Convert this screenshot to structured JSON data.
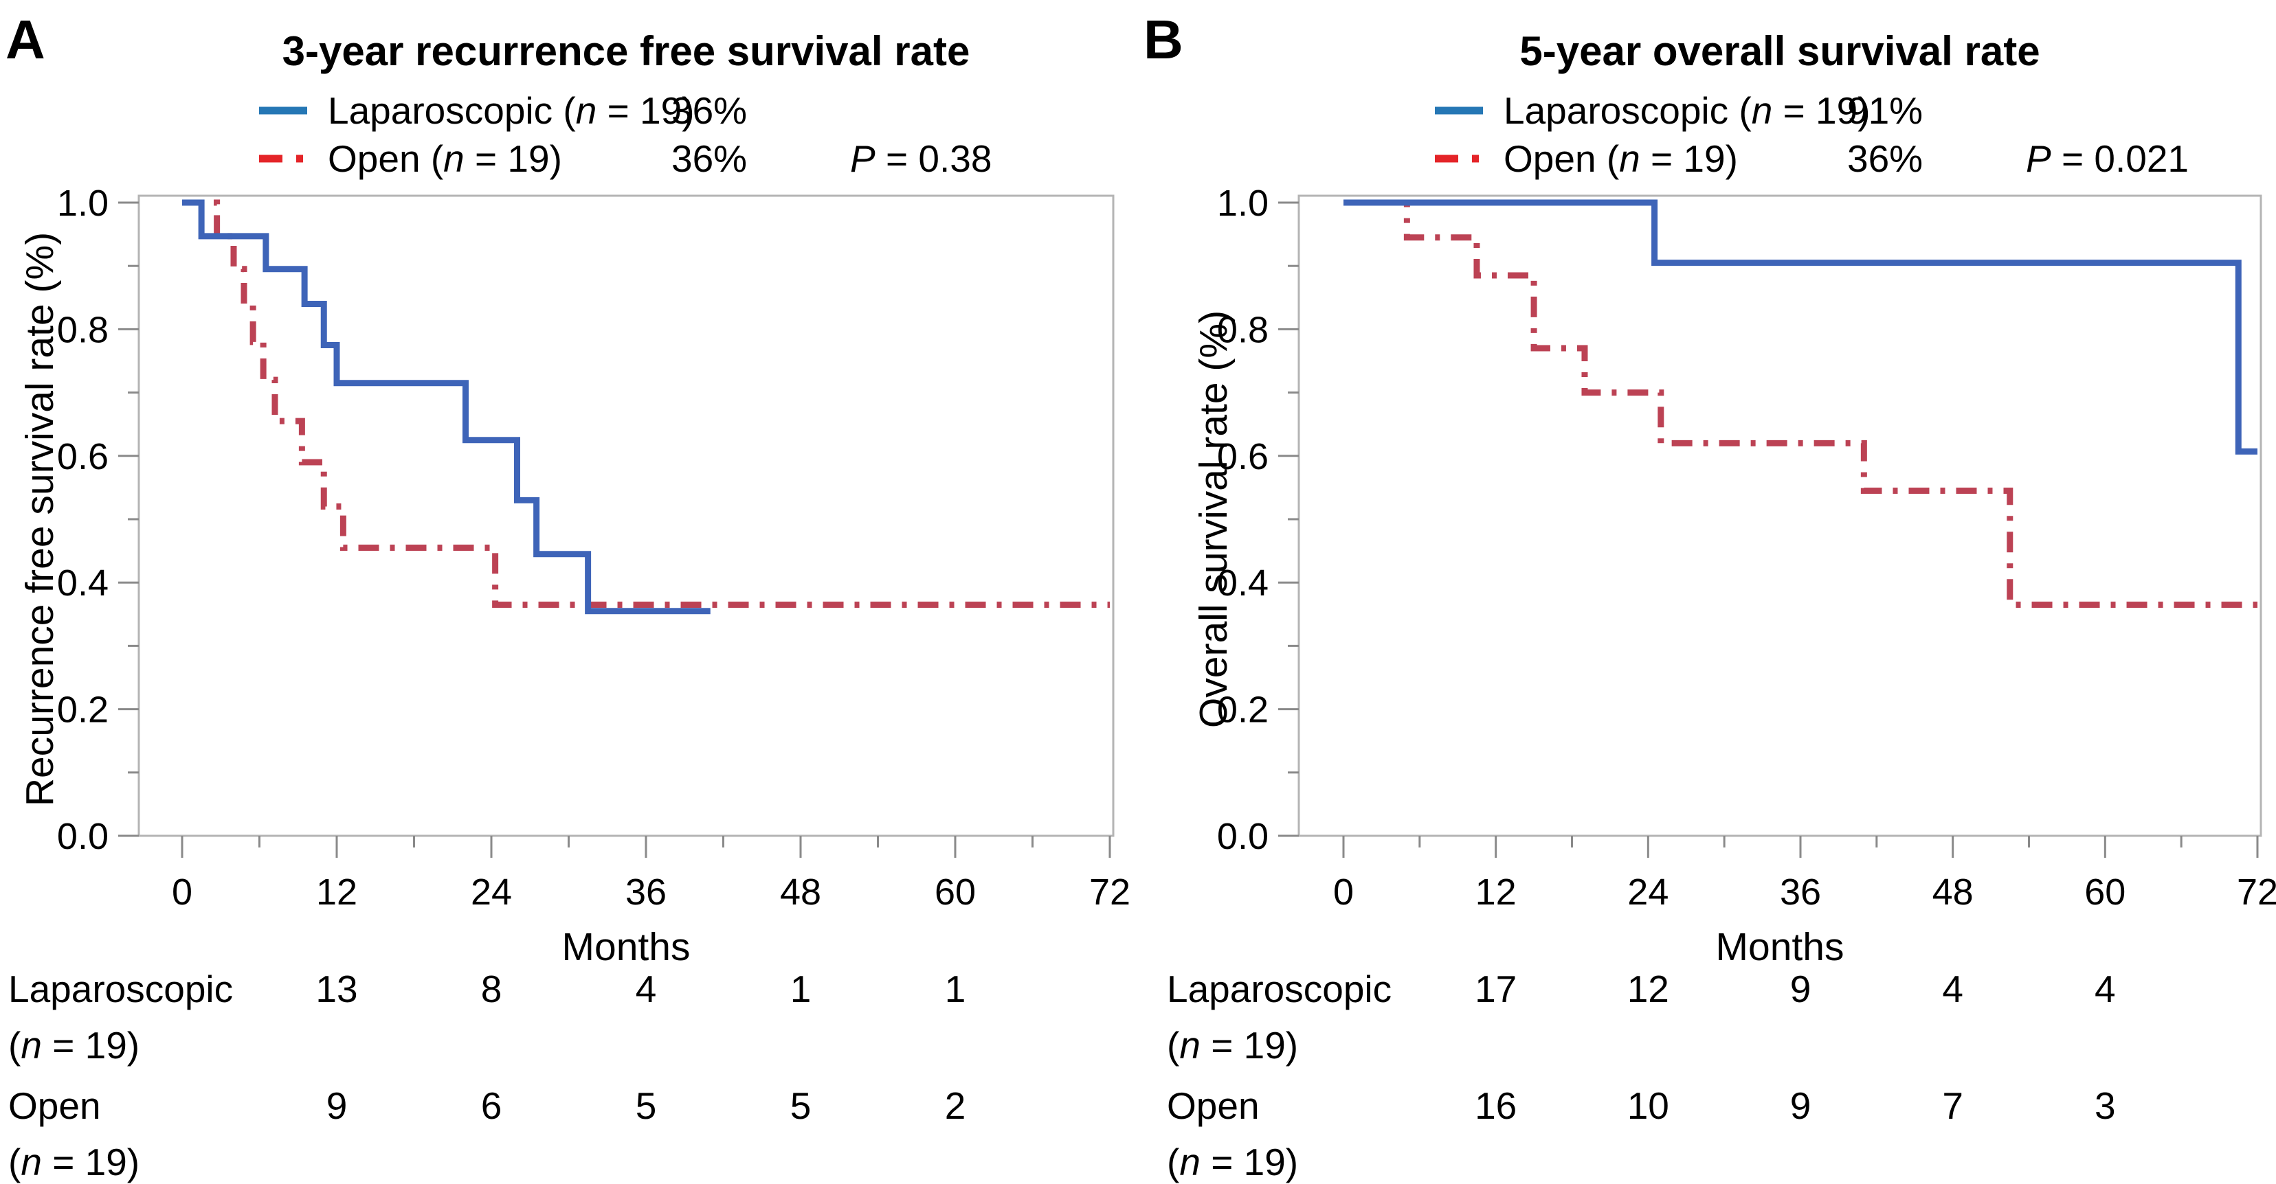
{
  "figure": {
    "background": "#ffffff",
    "frame_color": "#b4b4b4",
    "tick_color": "#8a8a8a",
    "text_color": "#000000"
  },
  "chart_data": [
    {
      "type": "line",
      "subtype": "kaplan-meier-step",
      "panel_label": "A",
      "title": "3-year recurrence free survival rate",
      "xlabel": "Months",
      "ylabel": "Recurrence free survival rate (%)",
      "xlim": [
        0,
        72
      ],
      "ylim": [
        0.0,
        1.0
      ],
      "xticks": [
        0,
        12,
        24,
        36,
        48,
        60,
        72
      ],
      "xminor": [
        6,
        18,
        30,
        42,
        54,
        66
      ],
      "yticks": [
        1.0,
        0.8,
        0.6,
        0.4,
        0.2,
        0.0
      ],
      "ytick_labels": [
        "1.0",
        "0.8",
        "0.6",
        "0.4",
        "0.2",
        "0.0"
      ],
      "yminor": [
        0.9,
        0.7,
        0.5,
        0.3,
        0.1
      ],
      "grid": false,
      "legend_position": "top",
      "legend": [
        {
          "prefix": "Laparoscopic (",
          "italic": "n",
          "suffix": " = 19)",
          "value": "36%",
          "color": "#2577b5",
          "style": "solid"
        },
        {
          "prefix": "Open (",
          "italic": "n",
          "suffix": " = 19)",
          "value": "36%",
          "p_italic": "P",
          "p_text": " = 0.38",
          "color": "#e42428",
          "style": "dashdot"
        }
      ],
      "series": [
        {
          "name": "Open (n = 19)",
          "color": "#bc4254",
          "dash": "dashdot",
          "steps": [
            [
              0,
              1.0
            ],
            [
              2.7,
              0.947
            ],
            [
              4,
              0.895
            ],
            [
              4.8,
              0.84
            ],
            [
              5.5,
              0.78
            ],
            [
              6.3,
              0.72
            ],
            [
              7.2,
              0.655
            ],
            [
              9.3,
              0.59
            ],
            [
              11,
              0.52
            ],
            [
              12.5,
              0.455
            ],
            [
              24.3,
              0.365
            ],
            [
              72,
              0.365
            ]
          ]
        },
        {
          "name": "Laparoscopic (n = 19)",
          "color": "#3e64b8",
          "dash": "solid",
          "steps": [
            [
              0,
              1.0
            ],
            [
              1.5,
              0.947
            ],
            [
              6.5,
              0.895
            ],
            [
              9.5,
              0.84
            ],
            [
              11,
              0.775
            ],
            [
              12,
              0.715
            ],
            [
              22,
              0.625
            ],
            [
              26,
              0.53
            ],
            [
              27.5,
              0.445
            ],
            [
              31.5,
              0.355
            ],
            [
              41,
              0.355
            ]
          ]
        }
      ],
      "risk_table": {
        "columns_months": [
          12,
          24,
          36,
          48,
          60
        ],
        "rows": [
          {
            "name": "Laparoscopic",
            "sub_pre": "(",
            "sub_it": "n",
            "sub_post": " = 19)",
            "counts": [
              "13",
              "8",
              "4",
              "1",
              "1"
            ]
          },
          {
            "name": "Open",
            "sub_pre": "(",
            "sub_it": "n",
            "sub_post": " = 19)",
            "counts": [
              "9",
              "6",
              "5",
              "5",
              "2"
            ]
          }
        ]
      }
    },
    {
      "type": "line",
      "subtype": "kaplan-meier-step",
      "panel_label": "B",
      "title": "5-year overall survival rate",
      "xlabel": "Months",
      "ylabel": "Overall survival rate (%)",
      "xlim": [
        0,
        72
      ],
      "ylim": [
        0.0,
        1.0
      ],
      "xticks": [
        0,
        12,
        24,
        36,
        48,
        60,
        72
      ],
      "xminor": [
        6,
        18,
        30,
        42,
        54,
        66
      ],
      "yticks": [
        1.0,
        0.8,
        0.6,
        0.4,
        0.2,
        0.0
      ],
      "ytick_labels": [
        "1.0",
        "0.8",
        "0.6",
        "0.4",
        "0.2",
        "0.0"
      ],
      "yminor": [
        0.9,
        0.7,
        0.5,
        0.3,
        0.1
      ],
      "grid": false,
      "legend_position": "top",
      "legend": [
        {
          "prefix": "Laparoscopic (",
          "italic": "n",
          "suffix": " = 19)",
          "value": "91%",
          "color": "#2577b5",
          "style": "solid"
        },
        {
          "prefix": "Open (",
          "italic": "n",
          "suffix": " = 19)",
          "value": "36%",
          "p_italic": "P",
          "p_text": " = 0.021",
          "color": "#e42428",
          "style": "dashdot"
        }
      ],
      "series": [
        {
          "name": "Open (n = 19)",
          "color": "#bc4254",
          "dash": "dashdot",
          "steps": [
            [
              0,
              1.0
            ],
            [
              5,
              0.945
            ],
            [
              10.5,
              0.885
            ],
            [
              15,
              0.77
            ],
            [
              19,
              0.7
            ],
            [
              25,
              0.62
            ],
            [
              41,
              0.545
            ],
            [
              52.5,
              0.365
            ],
            [
              72,
              0.365
            ]
          ]
        },
        {
          "name": "Laparoscopic (n = 19)",
          "color": "#3e64b8",
          "dash": "solid",
          "steps": [
            [
              0,
              1.0
            ],
            [
              24.5,
              0.905
            ],
            [
              70.5,
              0.607
            ],
            [
              72,
              0.607
            ]
          ]
        }
      ],
      "risk_table": {
        "columns_months": [
          12,
          24,
          36,
          48,
          60
        ],
        "rows": [
          {
            "name": "Laparoscopic",
            "sub_pre": "(",
            "sub_it": "n",
            "sub_post": " = 19)",
            "counts": [
              "17",
              "12",
              "9",
              "4",
              "4"
            ]
          },
          {
            "name": "Open",
            "sub_pre": "(",
            "sub_it": "n",
            "sub_post": " = 19)",
            "counts": [
              "16",
              "10",
              "9",
              "7",
              "3"
            ]
          }
        ]
      }
    }
  ]
}
